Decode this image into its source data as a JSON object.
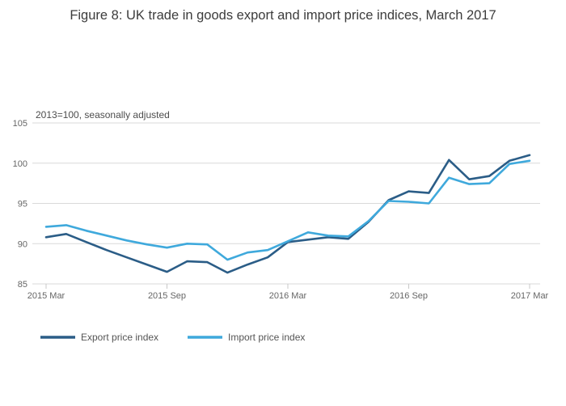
{
  "figure": {
    "title": "Figure 8: UK trade in goods export and import price indices, March 2017",
    "subtitle": "2013=100, seasonally adjusted"
  },
  "legend": {
    "items": [
      {
        "label": "Export price index",
        "color": "#2b5d87"
      },
      {
        "label": "Import price index",
        "color": "#3fa9dc"
      }
    ]
  },
  "chart_data": {
    "type": "line",
    "title": "Figure 8: UK trade in goods export and import price indices, March 2017",
    "subtitle": "2013=100, seasonally adjusted",
    "x": [
      "2015 Mar",
      "2015 Apr",
      "2015 May",
      "2015 Jun",
      "2015 Jul",
      "2015 Aug",
      "2015 Sep",
      "2015 Oct",
      "2015 Nov",
      "2015 Dec",
      "2016 Jan",
      "2016 Feb",
      "2016 Mar",
      "2016 Apr",
      "2016 May",
      "2016 Jun",
      "2016 Jul",
      "2016 Aug",
      "2016 Sep",
      "2016 Oct",
      "2016 Nov",
      "2016 Dec",
      "2017 Jan",
      "2017 Feb",
      "2017 Mar"
    ],
    "series": [
      {
        "name": "Export price index",
        "color": "#2b5d87",
        "values": [
          90.8,
          91.2,
          90.2,
          89.2,
          88.3,
          87.4,
          86.5,
          87.8,
          87.7,
          86.4,
          87.4,
          88.3,
          90.2,
          90.5,
          90.8,
          90.6,
          92.7,
          95.4,
          96.5,
          96.3,
          100.4,
          98.0,
          98.4,
          100.3,
          101.0
        ]
      },
      {
        "name": "Import price index",
        "color": "#3fa9dc",
        "values": [
          92.1,
          92.3,
          91.6,
          91.0,
          90.4,
          89.9,
          89.5,
          90.0,
          89.9,
          88.0,
          88.9,
          89.2,
          90.3,
          91.4,
          91.0,
          90.9,
          92.8,
          95.3,
          95.2,
          95.0,
          98.2,
          97.4,
          97.5,
          99.9,
          100.3
        ]
      }
    ],
    "ylim": [
      85,
      105
    ],
    "yticks": [
      85,
      90,
      95,
      100,
      105
    ],
    "xticks": [
      "2015 Mar",
      "2015 Sep",
      "2016 Mar",
      "2016 Sep",
      "2017 Mar"
    ],
    "grid": "horizontal",
    "legend_position": "bottom-left",
    "grid_color": "#d9d9d9",
    "tick_label_color": "#666666"
  }
}
